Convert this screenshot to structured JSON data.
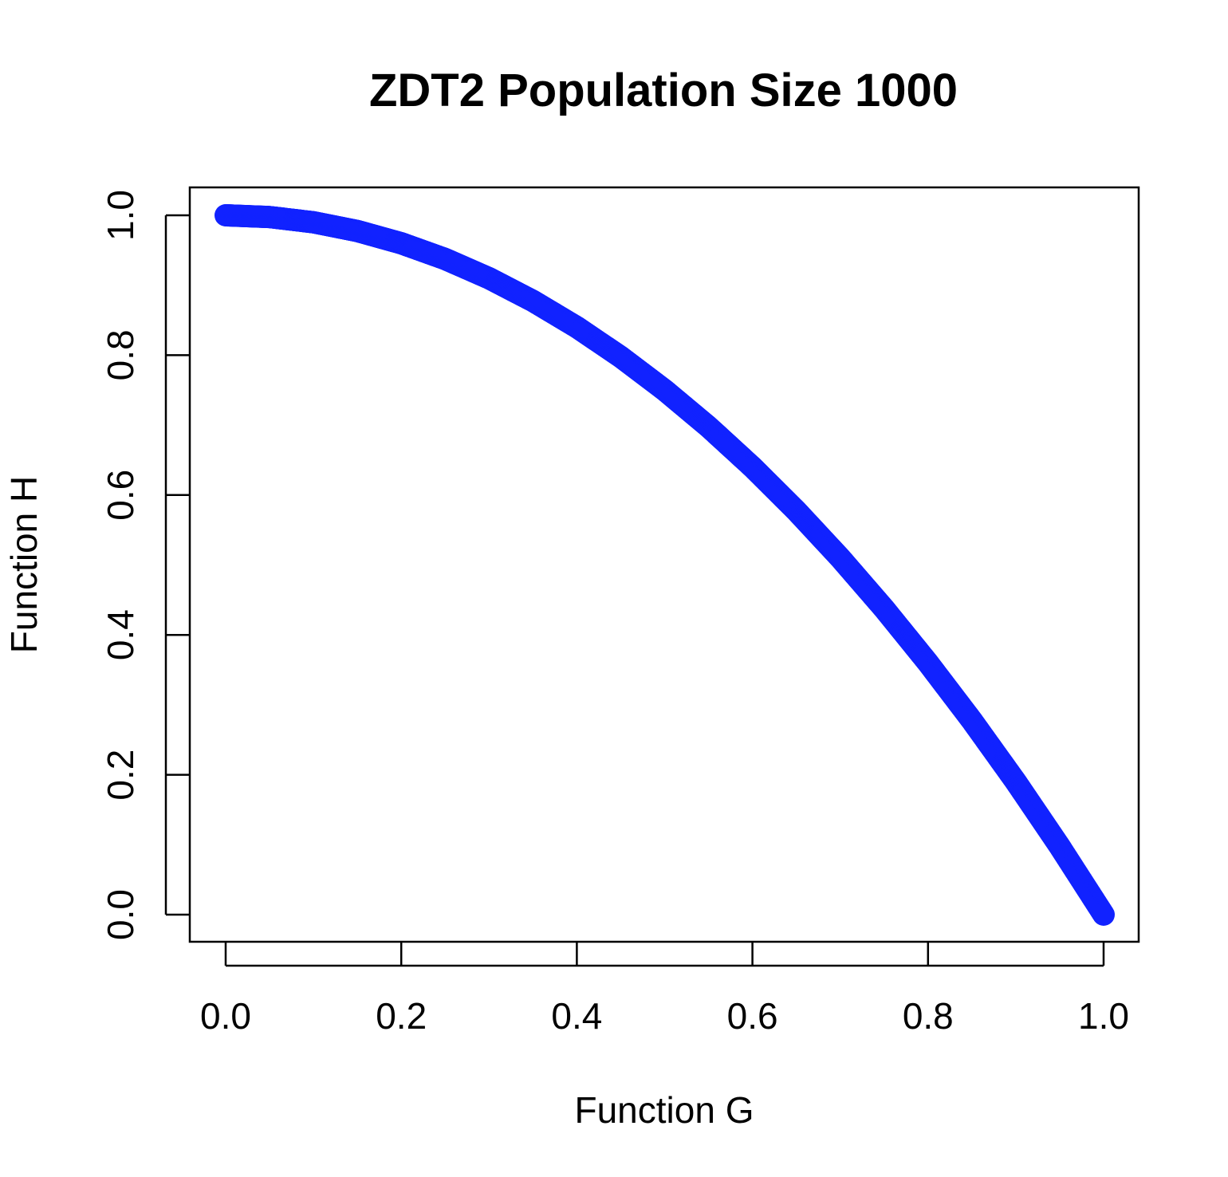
{
  "chart_data": {
    "type": "scatter",
    "title": "ZDT2 Population Size 1000",
    "xlabel": "Function G",
    "ylabel": "Function H",
    "xlim": [
      0,
      1
    ],
    "ylim": [
      0,
      1
    ],
    "xticks": [
      "0.0",
      "0.2",
      "0.4",
      "0.6",
      "0.8",
      "1.0"
    ],
    "yticks": [
      "0.0",
      "0.2",
      "0.4",
      "0.6",
      "0.8",
      "1.0"
    ],
    "grid": false,
    "series": [
      {
        "color": "#1122ff",
        "point_count": 1000,
        "x": [
          0.0,
          0.05,
          0.1,
          0.15,
          0.2,
          0.25,
          0.3,
          0.35,
          0.4,
          0.45,
          0.5,
          0.55,
          0.6,
          0.65,
          0.7,
          0.75,
          0.8,
          0.85,
          0.9,
          0.95,
          1.0
        ],
        "y": [
          1.0,
          0.9975,
          0.99,
          0.9775,
          0.96,
          0.9375,
          0.91,
          0.8775,
          0.84,
          0.7975,
          0.75,
          0.6975,
          0.64,
          0.5775,
          0.51,
          0.4375,
          0.36,
          0.2775,
          0.19,
          0.0975,
          0.0
        ]
      }
    ]
  }
}
